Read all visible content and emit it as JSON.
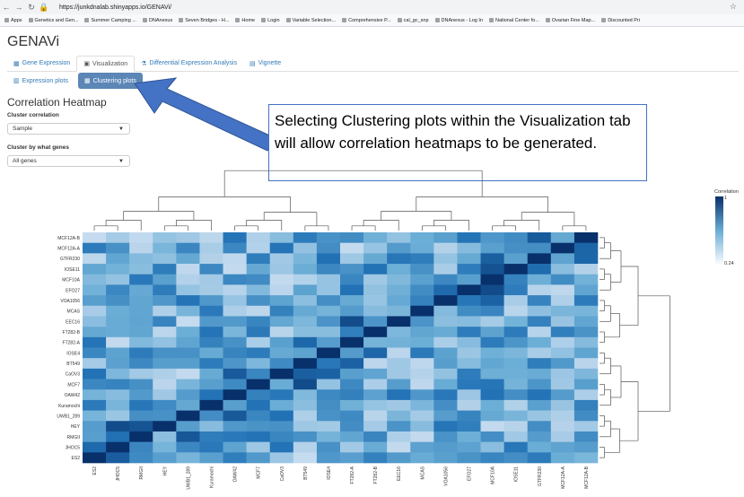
{
  "browser": {
    "url": "https://junkdnalab.shinyapps.io/GENAVi/",
    "bookmarks": [
      "Apps",
      "Genetics and Gen...",
      "Summer Camping ...",
      "DNAnexus",
      "Seven Bridges - H...",
      "Home",
      "Login",
      "Variable Selection...",
      "Comprehensive P...",
      "cal_gc_snp",
      "DNAnexus - Log In",
      "National Center fo...",
      "Ovarian Fine Map...",
      "Discounted Pri"
    ]
  },
  "app": {
    "title": "GENAVi",
    "tabs": [
      "Gene Expression",
      "Visualization",
      "Differential Expression Analysis",
      "Vignette"
    ],
    "active_tab": "Visualization",
    "subtabs": [
      "Expression plots",
      "Clustering plots"
    ],
    "active_subtab": "Clustering plots"
  },
  "panel": {
    "title": "Correlation Heatmap",
    "cluster_correlation_label": "Cluster correlation",
    "cluster_correlation_value": "Sample",
    "cluster_genes_label": "Cluster by what genes",
    "cluster_genes_value": "All genes"
  },
  "callout": {
    "text": "Selecting Clustering plots within the Visualization tab will allow correlation heatmaps to be generated."
  },
  "heatmap": {
    "rows": [
      "MCF12A-B",
      "MCF12A-A",
      "GTFR230",
      "IOSE11",
      "MCF10A",
      "EFO27",
      "VOA1056",
      "MCAS",
      "EEC16",
      "FT282-B",
      "FT282-A",
      "IOSE4",
      "BT549",
      "CaOV3",
      "MCF7",
      "OAW42",
      "Kuramochi",
      "UWB1_289",
      "HEY",
      "RMGII",
      "JHOC5",
      "ES2"
    ],
    "columns": [
      "ES2",
      "JHOC5",
      "RMGII",
      "HEY",
      "UWB1_289",
      "Kuramochi",
      "OAW42",
      "MCF7",
      "CaOV3",
      "BT549",
      "IOSE4",
      "FT282-A",
      "FT282-B",
      "EEC16",
      "MCAS",
      "VOA1056",
      "EFO27",
      "MCF10A",
      "IOSE11",
      "GTFR230",
      "MCF12A-A",
      "MCF12A-B"
    ],
    "legend_title": "Correlation",
    "legend_max": "1",
    "legend_min": "0.24",
    "color_low": "#ffffff",
    "color_high": "#08306b"
  }
}
